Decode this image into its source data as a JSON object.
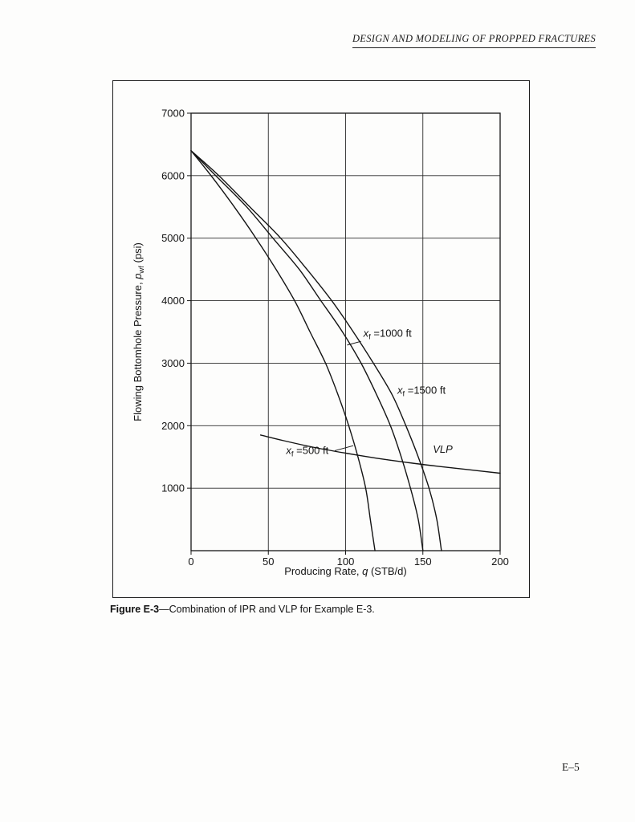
{
  "page": {
    "header": "DESIGN AND MODELING OF PROPPED FRACTURES",
    "page_number": "E–5"
  },
  "caption": {
    "bold": "Figure E-3",
    "rest": "—Combination of IPR and VLP for Example E-3."
  },
  "chart_data": {
    "type": "line",
    "title": "",
    "xlabel": "Producing Rate, q (STB/d)",
    "ylabel": "Flowing Bottomhole Pressure, pwf (psi)",
    "xlabel_parts": {
      "pre": "Producing Rate, ",
      "italic": "q",
      "sub": "",
      "post": " (STB/d)"
    },
    "ylabel_parts": {
      "pre": "Flowing Bottomhole Pressure, ",
      "italic": "p",
      "sub": "wf",
      "post": " (psi)"
    },
    "xlim": [
      0,
      200
    ],
    "ylim": [
      0,
      7000
    ],
    "xticks": [
      0,
      50,
      100,
      150,
      200
    ],
    "yticks": [
      1000,
      2000,
      3000,
      4000,
      5000,
      6000,
      7000
    ],
    "grid": true,
    "legend_position": "none (inline annotations)",
    "series": [
      {
        "name": "IPR xf=500 ft",
        "points": [
          [
            0,
            6400
          ],
          [
            13,
            6000
          ],
          [
            28,
            5500
          ],
          [
            42,
            5000
          ],
          [
            55,
            4500
          ],
          [
            67,
            4000
          ],
          [
            77,
            3500
          ],
          [
            87,
            3000
          ],
          [
            95,
            2500
          ],
          [
            102,
            2000
          ],
          [
            108,
            1500
          ],
          [
            113,
            1000
          ],
          [
            116,
            500
          ],
          [
            119,
            0
          ]
        ]
      },
      {
        "name": "IPR xf=1000 ft",
        "points": [
          [
            0,
            6400
          ],
          [
            16,
            6000
          ],
          [
            36,
            5500
          ],
          [
            53,
            5000
          ],
          [
            70,
            4500
          ],
          [
            84,
            4000
          ],
          [
            98,
            3500
          ],
          [
            110,
            3000
          ],
          [
            120,
            2500
          ],
          [
            129,
            2000
          ],
          [
            136,
            1500
          ],
          [
            142,
            1000
          ],
          [
            147,
            500
          ],
          [
            150,
            0
          ]
        ]
      },
      {
        "name": "IPR xf=1500 ft",
        "points": [
          [
            0,
            6400
          ],
          [
            18,
            6000
          ],
          [
            38,
            5500
          ],
          [
            58,
            5000
          ],
          [
            75,
            4500
          ],
          [
            91,
            4000
          ],
          [
            105,
            3500
          ],
          [
            118,
            3000
          ],
          [
            130,
            2500
          ],
          [
            139,
            2000
          ],
          [
            147,
            1500
          ],
          [
            154,
            1000
          ],
          [
            159,
            500
          ],
          [
            162,
            0
          ]
        ]
      },
      {
        "name": "VLP",
        "points": [
          [
            45,
            1850
          ],
          [
            60,
            1760
          ],
          [
            80,
            1650
          ],
          [
            100,
            1560
          ],
          [
            120,
            1480
          ],
          [
            140,
            1410
          ],
          [
            160,
            1350
          ],
          [
            180,
            1295
          ],
          [
            200,
            1240
          ]
        ]
      }
    ],
    "annotations": [
      {
        "label": "xf =1000 ft",
        "italic": "x",
        "sub": "f",
        "rest": " =1000 ft",
        "x": 111.5,
        "y": 3420,
        "leader": [
          [
            110,
            3350
          ],
          [
            101,
            3290
          ]
        ]
      },
      {
        "label": "xf =1500 ft",
        "italic": "x",
        "sub": "f",
        "rest": " =1500 ft",
        "x": 133.5,
        "y": 2510,
        "leader": null
      },
      {
        "label": "xf =500 ft",
        "italic": "x",
        "sub": "f",
        "rest": " =500 ft",
        "x": 61.5,
        "y": 1545,
        "leader": [
          [
            93,
            1600
          ],
          [
            105,
            1680
          ]
        ]
      },
      {
        "label": "VLP",
        "italic": "VLP",
        "sub": "",
        "rest": "",
        "x": 156.5,
        "y": 1565,
        "leader": null
      }
    ]
  }
}
